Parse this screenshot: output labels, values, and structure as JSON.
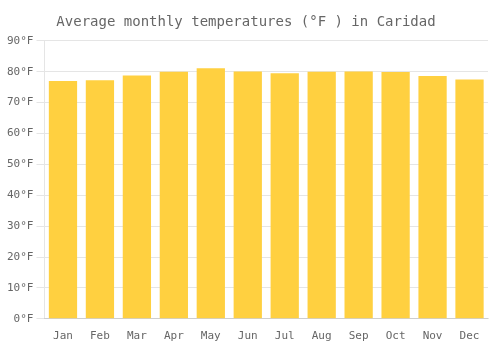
{
  "chart_data": {
    "type": "bar",
    "title": "Average monthly temperatures (°F ) in Caridad",
    "categories": [
      "Jan",
      "Feb",
      "Mar",
      "Apr",
      "May",
      "Jun",
      "Jul",
      "Aug",
      "Sep",
      "Oct",
      "Nov",
      "Dec"
    ],
    "values": [
      77.0,
      77.2,
      78.8,
      80.0,
      81.1,
      80.1,
      79.5,
      80.0,
      80.1,
      79.9,
      78.6,
      77.5
    ],
    "color": "#FFD040",
    "ylim": [
      0,
      90
    ],
    "yticks": [
      {
        "value": 0,
        "label": "0°F"
      },
      {
        "value": 10,
        "label": "10°F"
      },
      {
        "value": 20,
        "label": "20°F"
      },
      {
        "value": 30,
        "label": "30°F"
      },
      {
        "value": 40,
        "label": "40°F"
      },
      {
        "value": 50,
        "label": "50°F"
      },
      {
        "value": 60,
        "label": "60°F"
      },
      {
        "value": 70,
        "label": "70°F"
      },
      {
        "value": 80,
        "label": "80°F"
      },
      {
        "value": 90,
        "label": "90°F"
      }
    ],
    "grid": true
  }
}
